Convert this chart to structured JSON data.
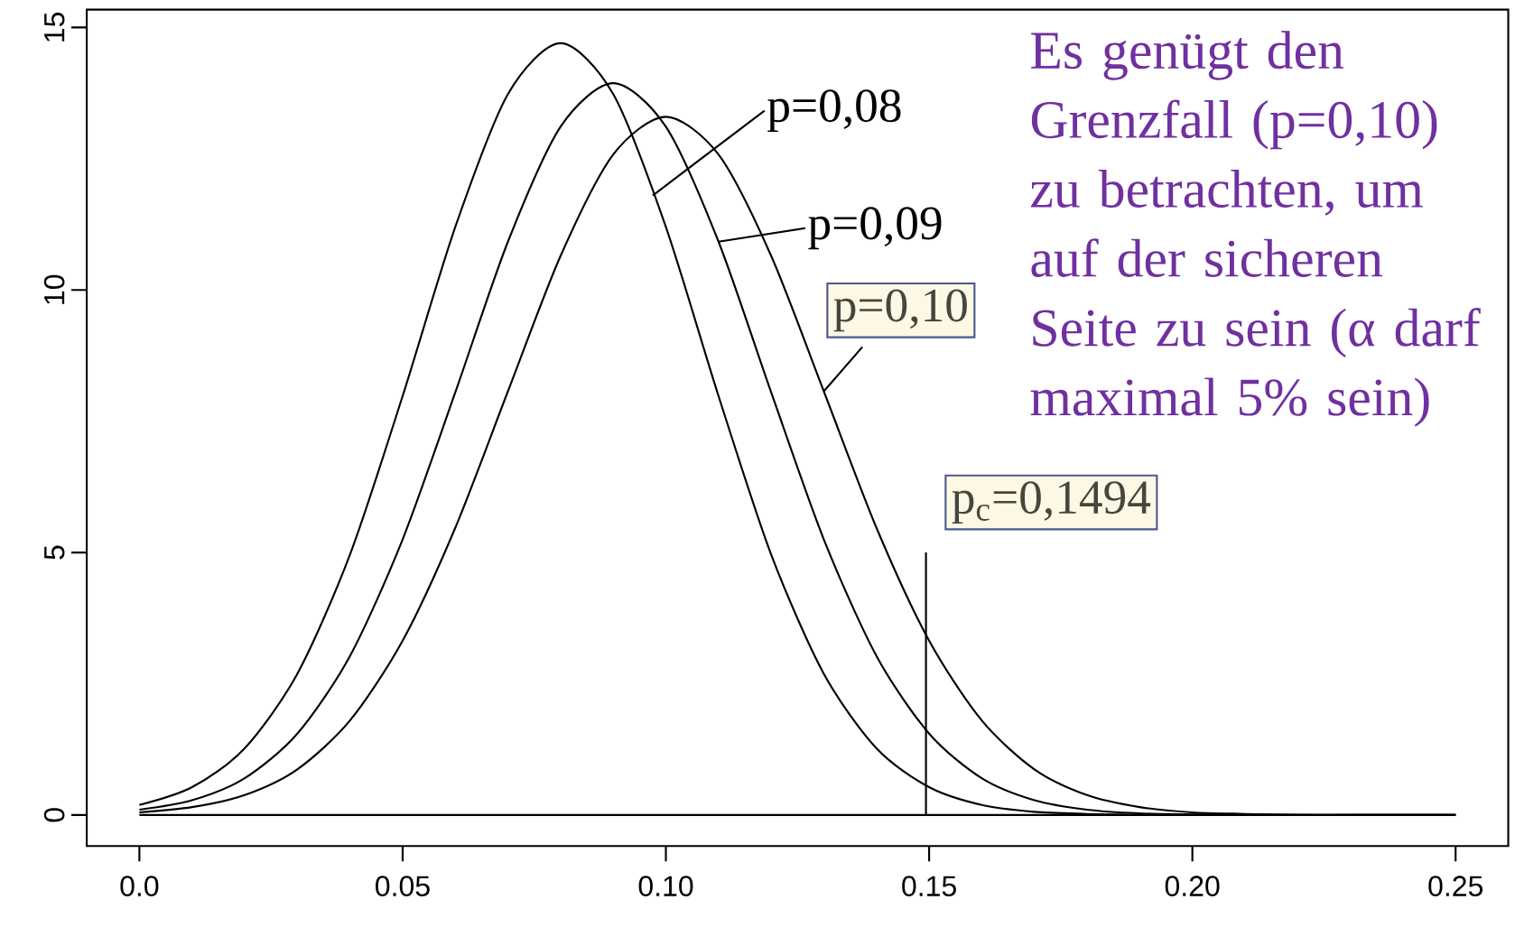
{
  "chart_data": {
    "type": "line",
    "x": [
      0,
      0.01,
      0.02,
      0.03,
      0.04,
      0.05,
      0.06,
      0.07,
      0.08,
      0.09,
      0.1,
      0.11,
      0.12,
      0.13,
      0.14,
      0.15,
      0.16,
      0.17,
      0.18,
      0.19,
      0.2,
      0.21,
      0.22,
      0.23,
      0.24,
      0.25
    ],
    "series": [
      {
        "color": "#000000",
        "values": [
          0.19,
          0.53,
          1.27,
          2.69,
          4.96,
          7.98,
          11.2,
          13.73,
          14.7,
          13.73,
          11.2,
          7.98,
          4.96,
          2.69,
          1.27,
          0.53,
          0.19,
          0.06,
          0.02,
          0,
          0,
          0,
          0,
          0,
          0,
          0
        ]
      },
      {
        "color": "#000000",
        "values": [
          0.1,
          0.28,
          0.7,
          1.55,
          3.03,
          5.25,
          8.05,
          10.92,
          13.11,
          13.94,
          13.11,
          10.92,
          8.05,
          5.25,
          3.03,
          1.55,
          0.7,
          0.28,
          0.1,
          0.03,
          0.01,
          0,
          0,
          0,
          0,
          0
        ]
      },
      {
        "color": "#000000",
        "values": [
          0.05,
          0.15,
          0.38,
          0.87,
          1.8,
          3.32,
          5.47,
          8.07,
          10.65,
          12.58,
          13.3,
          12.58,
          10.65,
          8.07,
          5.47,
          3.32,
          1.8,
          0.87,
          0.38,
          0.15,
          0.05,
          0.02,
          0,
          0,
          0,
          0
        ]
      },
      {
        "color": "#000000",
        "x": [
          0,
          0.25
        ],
        "values": [
          0,
          0
        ]
      },
      {
        "color": "#000000",
        "x": [
          0.1494,
          0.1494
        ],
        "values": [
          0,
          5
        ]
      }
    ],
    "xlim": [
      -0.01,
      0.26
    ],
    "ylim": [
      -0.59,
      15.34
    ],
    "xticks": [
      {
        "value": 0,
        "label": "0.0"
      },
      {
        "value": 0.05,
        "label": "0.05"
      },
      {
        "value": 0.1,
        "label": "0.10"
      },
      {
        "value": 0.15,
        "label": "0.15"
      },
      {
        "value": 0.2,
        "label": "0.20"
      },
      {
        "value": 0.25,
        "label": "0.25"
      }
    ],
    "yticks": [
      0,
      5,
      10,
      15
    ],
    "marker": "none",
    "line_style": "solid",
    "grid": false,
    "annotations": [
      {
        "text": "p=0,08",
        "x": 0.0975,
        "y": 11.8
      },
      {
        "text": "p=0,09",
        "x": 0.11,
        "y": 10.92
      },
      {
        "text": "p=0,10",
        "x": 0.13,
        "y": 8.07
      },
      {
        "text": "p$_{c}$=0,1494",
        "x": 0.1494,
        "y": 5
      },
      "Es genügt den Grenzfall (p=0,10) zu betrachten, um auf der sicheren Seite zu sein (α darf maximal 5% sein)"
    ]
  }
}
